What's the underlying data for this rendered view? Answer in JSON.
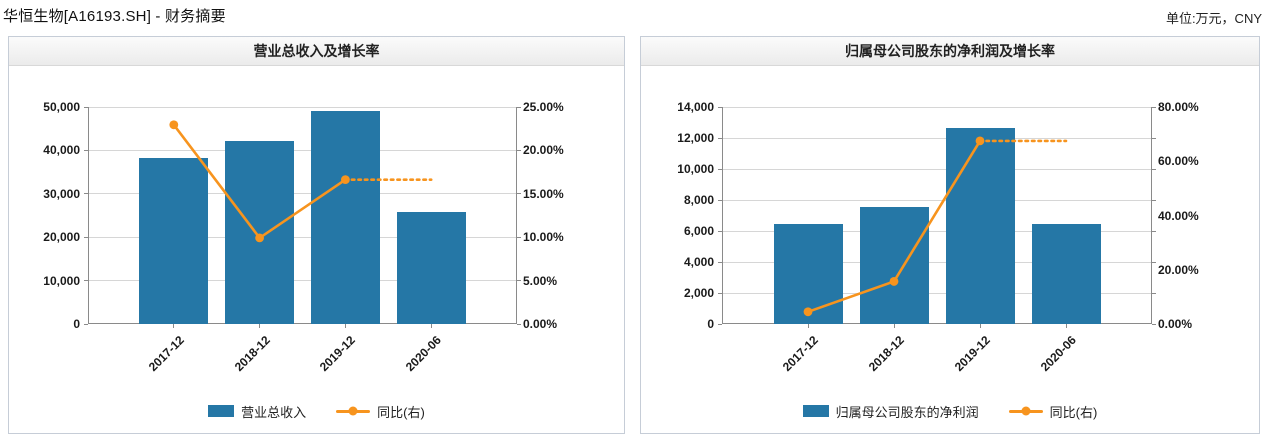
{
  "page": {
    "title": "华恒生物[A16193.SH] - 财务摘要",
    "unit_label": "单位:万元，CNY"
  },
  "colors": {
    "bar": "#2577a6",
    "line": "#f7941e",
    "grid": "#d6d6d6",
    "axis": "#8a8a8a",
    "tick_text": "#1a1a1a",
    "panel_border": "#c6cdd7"
  },
  "chart_data": [
    {
      "type": "bar+line",
      "title": "营业总收入及增长率",
      "categories": [
        "2017-12",
        "2018-12",
        "2019-12",
        "2020-06"
      ],
      "bar_series": {
        "name": "营业总收入",
        "axis": "left",
        "values": [
          38300,
          42100,
          49100,
          25700
        ]
      },
      "line_series": {
        "name": "同比(右)",
        "axis": "right",
        "values_pct": [
          22.95,
          9.92,
          16.63,
          16.63
        ],
        "dotted_from_index": 2
      },
      "left_axis": {
        "min": 0,
        "max": 50000,
        "tick_labels": [
          "0",
          "10,000",
          "20,000",
          "30,000",
          "40,000",
          "50,000"
        ]
      },
      "right_axis": {
        "min": 0,
        "max": 25,
        "tick_labels": [
          "0.00%",
          "5.00%",
          "10.00%",
          "15.00%",
          "20.00%",
          "25.00%"
        ]
      }
    },
    {
      "type": "bar+line",
      "title": "归属母公司股东的净利润及增长率",
      "categories": [
        "2017-12",
        "2018-12",
        "2019-12",
        "2020-06"
      ],
      "bar_series": {
        "name": "归属母公司股东的净利润",
        "axis": "left",
        "values": [
          6433,
          7571,
          12665,
          6450
        ]
      },
      "line_series": {
        "name": "同比(右)",
        "axis": "right",
        "values_pct": [
          4.5,
          15.7,
          67.5,
          67.5
        ],
        "dotted_from_index": 2
      },
      "left_axis": {
        "min": 0,
        "max": 14000,
        "tick_labels": [
          "0",
          "2,000",
          "4,000",
          "6,000",
          "8,000",
          "10,000",
          "12,000",
          "14,000"
        ]
      },
      "right_axis": {
        "min": 0,
        "max": 80,
        "tick_labels": [
          "0.00%",
          "20.00%",
          "40.00%",
          "60.00%",
          "80.00%"
        ]
      }
    }
  ]
}
